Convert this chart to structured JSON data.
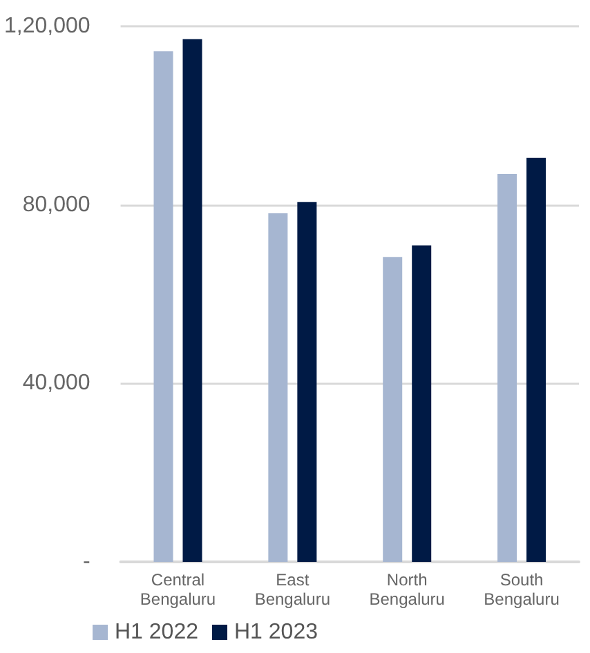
{
  "chart_data": {
    "type": "bar",
    "categories": [
      "Central\nBengaluru",
      "East\nBengaluru",
      "North\nBengaluru",
      "South\nBengaluru"
    ],
    "series": [
      {
        "name": "H1 2022",
        "color": "#a6b6d1",
        "values": [
          114400,
          78100,
          68300,
          86900
        ]
      },
      {
        "name": "H1 2023",
        "color": "#001a45",
        "values": [
          117100,
          80600,
          70900,
          90500
        ]
      }
    ],
    "ylim": [
      0,
      120000
    ],
    "yticks": [
      {
        "value": 0,
        "label": "-"
      },
      {
        "value": 40000,
        "label": "40,000"
      },
      {
        "value": 80000,
        "label": "80,000"
      },
      {
        "value": 120000,
        "label": "1,20,000"
      }
    ],
    "grid": "y",
    "legend": "bottom left"
  }
}
